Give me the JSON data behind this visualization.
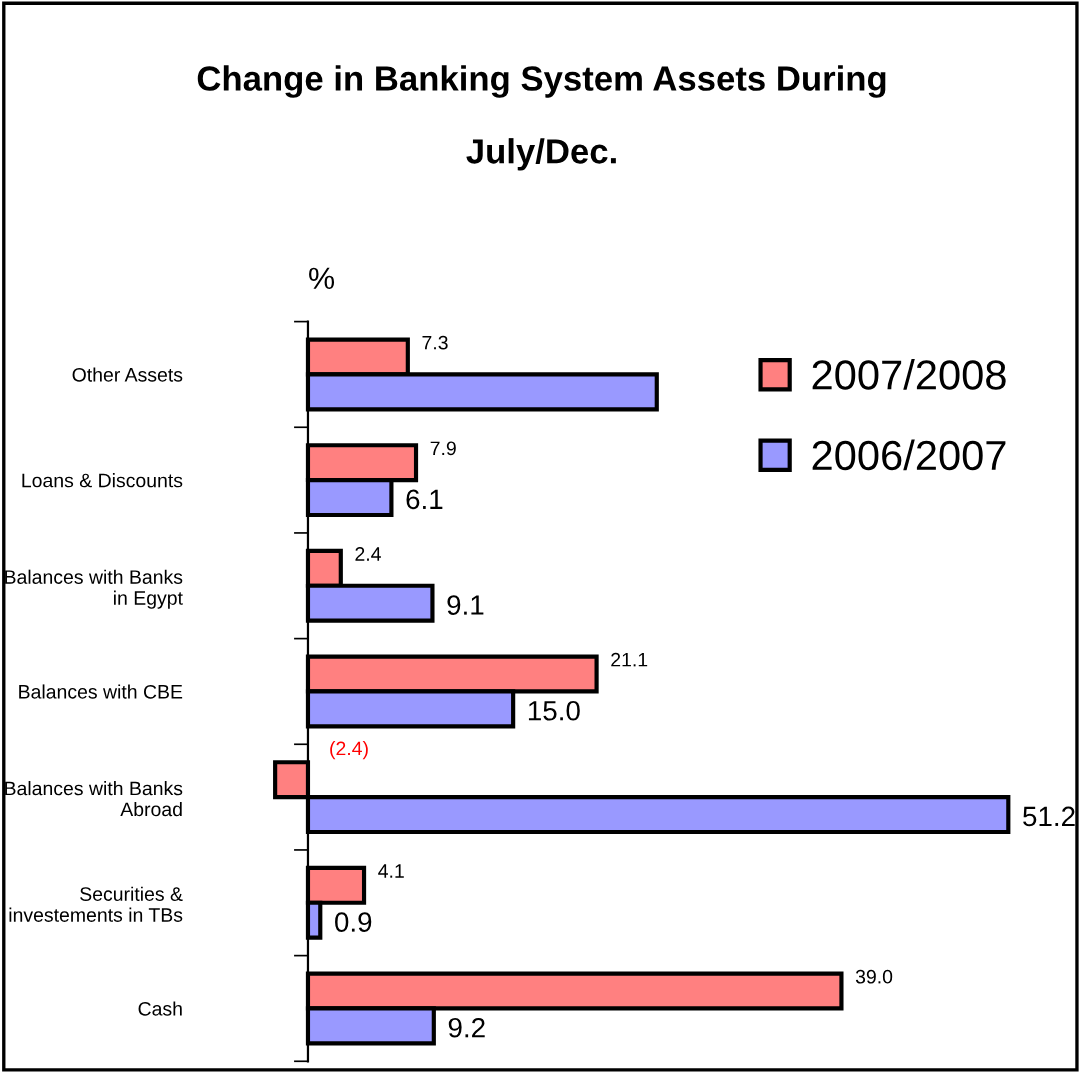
{
  "chart_data": {
    "type": "bar",
    "orientation": "horizontal",
    "title": "Change in Banking System Assets During\nJuly/Dec.",
    "ylabel": "%",
    "categories": [
      "Other Assets",
      "Loans & Discounts",
      "Balances with Banks\nin Egypt",
      "Balances with CBE",
      "Balances with Banks\nAbroad",
      "Securities &\ninvestements in TBs",
      "Cash"
    ],
    "series": [
      {
        "name": "2007/2008",
        "color": "#ff8080",
        "values": [
          7.3,
          7.9,
          2.4,
          21.1,
          -2.4,
          4.1,
          39.0
        ],
        "value_labels": [
          "7.3",
          "7.9",
          "2.4",
          "21.1",
          "(2.4)",
          "4.1",
          "39.0"
        ]
      },
      {
        "name": "2006/2007",
        "color": "#9999ff",
        "values": [
          25.5,
          6.1,
          9.1,
          15.0,
          51.2,
          0.9,
          9.2
        ],
        "value_labels": [
          null,
          "6.1",
          "9.1",
          "15.0",
          "51.2",
          "0.9",
          "9.2"
        ]
      }
    ],
    "tick_labels": "y",
    "grid": false,
    "legend": "top right"
  }
}
